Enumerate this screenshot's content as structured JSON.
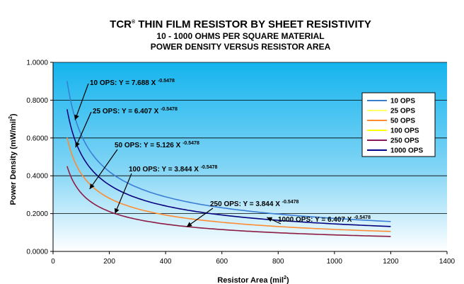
{
  "chart_data": {
    "type": "line",
    "title": {
      "main": "TCR",
      "mark": "®",
      "rest": " THIN FILM RESISTOR BY SHEET RESISTIVITY"
    },
    "subtitle_1": "10 - 1000 OHMS PER SQUARE MATERIAL",
    "subtitle_2": "POWER DENSITY VERSUS RESISTOR AREA",
    "xlabel": {
      "text": "Resistor Area (mil",
      "sup": "2",
      "close": ")"
    },
    "ylabel": {
      "text": "Power Density (mW/mil",
      "sup": "2",
      "close": ")"
    },
    "xlim": [
      0,
      1400
    ],
    "ylim": [
      0,
      1.0
    ],
    "xticks": [
      0,
      200,
      400,
      600,
      800,
      1000,
      1200,
      1400
    ],
    "yticks": [
      0,
      0.2,
      0.4,
      0.6,
      0.8,
      1.0
    ],
    "ytick_labels": [
      "0.0000",
      "0.2000",
      "0.4000",
      "0.6000",
      "0.8000",
      "1.0000"
    ],
    "grid": "horizontal",
    "legend_position": "right",
    "x_range": [
      50,
      1200
    ],
    "series": [
      {
        "name": "10 OPS",
        "coef": 7.688,
        "exp": -0.5478,
        "color": "#3a7fd5"
      },
      {
        "name": "25 OPS",
        "coef": 6.407,
        "exp": -0.5478,
        "color": "#ffff66"
      },
      {
        "name": "50 OPS",
        "coef": 5.126,
        "exp": -0.5478,
        "color": "#ff8c33"
      },
      {
        "name": "100 OPS",
        "coef": 3.844,
        "exp": -0.5478,
        "color": "#ffff00"
      },
      {
        "name": "250 OPS",
        "coef": 3.844,
        "exp": -0.5478,
        "color": "#8b1a5c"
      },
      {
        "name": "1000 OPS",
        "coef": 6.407,
        "exp": -0.5478,
        "color": "#00008b"
      }
    ],
    "annotations": [
      {
        "text": "10 OPS: Y = 7.688 X ",
        "sup": "-0.5478",
        "target_x": 78,
        "target_y": 0.695
      },
      {
        "text": "25 OPS: Y = 6.407 X ",
        "sup": "-0.5478",
        "target_x": 80,
        "target_y": 0.55
      },
      {
        "text": "50 OPS: Y = 5.126 X ",
        "sup": "-0.5478",
        "target_x": 130,
        "target_y": 0.33
      },
      {
        "text": "100 OPS: Y = 3.844 X ",
        "sup": "-0.5478",
        "target_x": 220,
        "target_y": 0.2
      },
      {
        "text": "250 OPS: Y = 3.844 X ",
        "sup": "-0.5478",
        "target_x": 475,
        "target_y": 0.13
      },
      {
        "text": "1000 OPS: Y = 6.407 X ",
        "sup": "-0.5478",
        "target_x": 760,
        "target_y": 0.18
      }
    ]
  }
}
